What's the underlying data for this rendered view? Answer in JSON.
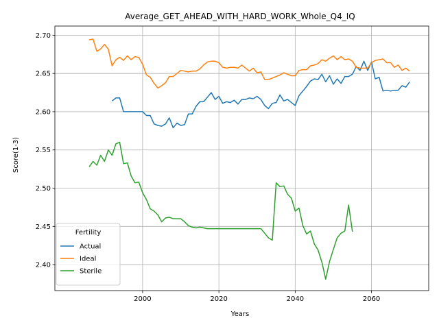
{
  "chart_data": {
    "type": "line",
    "title": "Average_GET_AHEAD_WITH_HARD_WORK_Whole_Q4_IQ",
    "xlabel": "Years",
    "ylabel": "Score(1-3)",
    "xlim": [
      1977,
      2075
    ],
    "ylim": [
      2.366,
      2.712
    ],
    "xticks": [
      2000,
      2020,
      2040,
      2060
    ],
    "yticks": [
      2.4,
      2.45,
      2.5,
      2.55,
      2.6,
      2.65,
      2.7
    ],
    "grid": true,
    "legend": {
      "title": "Fertility",
      "position": "lower-left"
    },
    "series": [
      {
        "name": "Actual",
        "color": "#1f77b4",
        "x": [
          1992,
          1993,
          1994,
          1995,
          1996,
          1997,
          1998,
          1999,
          2000,
          2001,
          2002,
          2003,
          2004,
          2005,
          2006,
          2007,
          2008,
          2009,
          2010,
          2011,
          2012,
          2013,
          2014,
          2015,
          2016,
          2017,
          2018,
          2019,
          2020,
          2021,
          2022,
          2023,
          2024,
          2025,
          2026,
          2027,
          2028,
          2029,
          2030,
          2031,
          2032,
          2033,
          2034,
          2035,
          2036,
          2037,
          2038,
          2039,
          2040,
          2041,
          2042,
          2043,
          2044,
          2045,
          2046,
          2047,
          2048,
          2049,
          2050,
          2051,
          2052,
          2053,
          2054,
          2055,
          2056,
          2057,
          2058,
          2059,
          2060,
          2061,
          2062,
          2063,
          2064,
          2065,
          2066,
          2067,
          2068,
          2069,
          2070
        ],
        "y": [
          2.614,
          2.618,
          2.618,
          2.6,
          2.6,
          2.6,
          2.6,
          2.6,
          2.6,
          2.595,
          2.595,
          2.584,
          2.582,
          2.581,
          2.584,
          2.592,
          2.579,
          2.585,
          2.582,
          2.583,
          2.597,
          2.597,
          2.607,
          2.613,
          2.613,
          2.619,
          2.625,
          2.616,
          2.62,
          2.611,
          2.613,
          2.612,
          2.615,
          2.61,
          2.616,
          2.616,
          2.618,
          2.617,
          2.62,
          2.616,
          2.608,
          2.604,
          2.611,
          2.612,
          2.622,
          2.614,
          2.616,
          2.612,
          2.608,
          2.621,
          2.627,
          2.633,
          2.64,
          2.643,
          2.642,
          2.649,
          2.639,
          2.647,
          2.636,
          2.643,
          2.637,
          2.646,
          2.646,
          2.649,
          2.659,
          2.654,
          2.666,
          2.654,
          2.665,
          2.643,
          2.645,
          2.627,
          2.628,
          2.627,
          2.628,
          2.628,
          2.634,
          2.632,
          2.639
        ]
      },
      {
        "name": "Ideal",
        "color": "#ff7f0e",
        "x": [
          1986,
          1987,
          1988,
          1989,
          1990,
          1991,
          1992,
          1993,
          1994,
          1995,
          1996,
          1997,
          1998,
          1999,
          2000,
          2001,
          2002,
          2003,
          2004,
          2005,
          2006,
          2007,
          2008,
          2009,
          2010,
          2011,
          2012,
          2013,
          2014,
          2015,
          2016,
          2017,
          2018,
          2019,
          2020,
          2021,
          2022,
          2023,
          2024,
          2025,
          2026,
          2027,
          2028,
          2029,
          2030,
          2031,
          2032,
          2033,
          2034,
          2035,
          2036,
          2037,
          2038,
          2039,
          2040,
          2041,
          2042,
          2043,
          2044,
          2045,
          2046,
          2047,
          2048,
          2049,
          2050,
          2051,
          2052,
          2053,
          2054,
          2055,
          2056,
          2057,
          2058,
          2059,
          2060,
          2061,
          2062,
          2063,
          2064,
          2065,
          2066,
          2067,
          2068,
          2069,
          2070
        ],
        "y": [
          2.694,
          2.695,
          2.679,
          2.682,
          2.688,
          2.682,
          2.66,
          2.668,
          2.671,
          2.667,
          2.673,
          2.668,
          2.672,
          2.671,
          2.662,
          2.648,
          2.645,
          2.637,
          2.631,
          2.634,
          2.638,
          2.646,
          2.646,
          2.65,
          2.654,
          2.653,
          2.652,
          2.653,
          2.653,
          2.656,
          2.661,
          2.665,
          2.666,
          2.666,
          2.664,
          2.658,
          2.657,
          2.658,
          2.658,
          2.657,
          2.661,
          2.657,
          2.653,
          2.657,
          2.651,
          2.652,
          2.642,
          2.642,
          2.644,
          2.646,
          2.648,
          2.651,
          2.649,
          2.647,
          2.647,
          2.654,
          2.655,
          2.655,
          2.66,
          2.661,
          2.663,
          2.668,
          2.666,
          2.67,
          2.673,
          2.668,
          2.672,
          2.668,
          2.669,
          2.666,
          2.658,
          2.657,
          2.657,
          2.657,
          2.664,
          2.667,
          2.668,
          2.669,
          2.664,
          2.664,
          2.658,
          2.661,
          2.654,
          2.657,
          2.653
        ]
      },
      {
        "name": "Sterile",
        "color": "#2ca02c",
        "x": [
          1986,
          1987,
          1988,
          1989,
          1990,
          1991,
          1992,
          1993,
          1994,
          1995,
          1996,
          1997,
          1998,
          1999,
          2000,
          2001,
          2002,
          2003,
          2004,
          2005,
          2006,
          2007,
          2008,
          2009,
          2010,
          2011,
          2012,
          2013,
          2014,
          2015,
          2016,
          2017,
          2018,
          2019,
          2020,
          2021,
          2022,
          2023,
          2024,
          2025,
          2026,
          2027,
          2028,
          2029,
          2030,
          2031,
          2032,
          2033,
          2034,
          2035,
          2036,
          2037,
          2038,
          2039,
          2040,
          2041,
          2042,
          2043,
          2044,
          2045,
          2046,
          2047,
          2048,
          2049,
          2050,
          2051,
          2052,
          2053,
          2054,
          2055
        ],
        "y": [
          2.528,
          2.535,
          2.53,
          2.543,
          2.535,
          2.55,
          2.543,
          2.558,
          2.56,
          2.532,
          2.533,
          2.516,
          2.507,
          2.508,
          2.494,
          2.485,
          2.473,
          2.47,
          2.465,
          2.456,
          2.461,
          2.462,
          2.46,
          2.46,
          2.46,
          2.456,
          2.451,
          2.449,
          2.448,
          2.449,
          2.448,
          2.447,
          2.447,
          2.447,
          2.447,
          2.447,
          2.447,
          2.447,
          2.447,
          2.447,
          2.447,
          2.447,
          2.447,
          2.447,
          2.447,
          2.447,
          2.441,
          2.435,
          2.432,
          2.507,
          2.502,
          2.503,
          2.492,
          2.487,
          2.47,
          2.474,
          2.451,
          2.44,
          2.444,
          2.427,
          2.419,
          2.403,
          2.381,
          2.404,
          2.42,
          2.435,
          2.441,
          2.444,
          2.478,
          2.443
        ]
      }
    ]
  }
}
